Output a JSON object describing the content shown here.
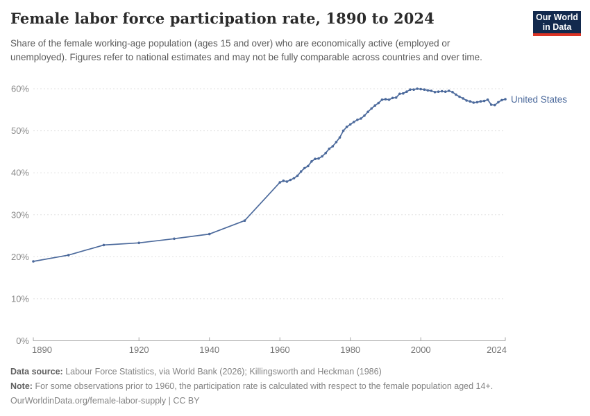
{
  "header": {
    "title": "Female labor force participation rate, 1890 to 2024",
    "subtitle": "Share of the female working-age population (ages 15 and over) who are economically active (employed or unemployed). Figures refer to national estimates and may not be fully comparable across countries and over time.",
    "logo": {
      "line1": "Our World",
      "line2": "in Data"
    }
  },
  "colors": {
    "series_line": "#4c6a9c",
    "logo_navy": "#12294d",
    "logo_red": "#dc3425",
    "gridline": "#e0e0e0",
    "axis": "#a6a6a6"
  },
  "chart_data": {
    "type": "line",
    "title": "Female labor force participation rate, 1890 to 2024",
    "xlabel": "",
    "ylabel": "",
    "xlim": [
      1890,
      2024
    ],
    "ylim": [
      0,
      60
    ],
    "x_ticks": [
      1890,
      1920,
      1940,
      1960,
      1980,
      2000,
      2024
    ],
    "y_ticks": [
      0,
      10,
      20,
      30,
      40,
      50,
      60
    ],
    "y_unit": "%",
    "grid": "horizontal-dashed",
    "legend_position": "end-of-line",
    "series": [
      {
        "name": "United States",
        "color": "#4c6a9c",
        "points": [
          [
            1890,
            18.9
          ],
          [
            1900,
            20.4
          ],
          [
            1910,
            22.8
          ],
          [
            1920,
            23.3
          ],
          [
            1930,
            24.3
          ],
          [
            1940,
            25.4
          ],
          [
            1950,
            28.6
          ],
          [
            1960,
            37.7
          ],
          [
            1961,
            38.1
          ],
          [
            1962,
            37.9
          ],
          [
            1963,
            38.3
          ],
          [
            1964,
            38.7
          ],
          [
            1965,
            39.3
          ],
          [
            1966,
            40.3
          ],
          [
            1967,
            41.1
          ],
          [
            1968,
            41.6
          ],
          [
            1969,
            42.7
          ],
          [
            1970,
            43.3
          ],
          [
            1971,
            43.4
          ],
          [
            1972,
            43.9
          ],
          [
            1973,
            44.7
          ],
          [
            1974,
            45.7
          ],
          [
            1975,
            46.3
          ],
          [
            1976,
            47.3
          ],
          [
            1977,
            48.4
          ],
          [
            1978,
            50.0
          ],
          [
            1979,
            50.9
          ],
          [
            1980,
            51.5
          ],
          [
            1981,
            52.1
          ],
          [
            1982,
            52.6
          ],
          [
            1983,
            52.9
          ],
          [
            1984,
            53.6
          ],
          [
            1985,
            54.5
          ],
          [
            1986,
            55.3
          ],
          [
            1987,
            56.0
          ],
          [
            1988,
            56.6
          ],
          [
            1989,
            57.4
          ],
          [
            1990,
            57.5
          ],
          [
            1991,
            57.4
          ],
          [
            1992,
            57.8
          ],
          [
            1993,
            57.9
          ],
          [
            1994,
            58.8
          ],
          [
            1995,
            58.9
          ],
          [
            1996,
            59.3
          ],
          [
            1997,
            59.8
          ],
          [
            1998,
            59.8
          ],
          [
            1999,
            60.0
          ],
          [
            2000,
            59.9
          ],
          [
            2001,
            59.8
          ],
          [
            2002,
            59.6
          ],
          [
            2003,
            59.5
          ],
          [
            2004,
            59.2
          ],
          [
            2005,
            59.3
          ],
          [
            2006,
            59.4
          ],
          [
            2007,
            59.3
          ],
          [
            2008,
            59.5
          ],
          [
            2009,
            59.2
          ],
          [
            2010,
            58.6
          ],
          [
            2011,
            58.1
          ],
          [
            2012,
            57.7
          ],
          [
            2013,
            57.2
          ],
          [
            2014,
            57.0
          ],
          [
            2015,
            56.7
          ],
          [
            2016,
            56.8
          ],
          [
            2017,
            57.0
          ],
          [
            2018,
            57.1
          ],
          [
            2019,
            57.4
          ],
          [
            2020,
            56.2
          ],
          [
            2021,
            56.1
          ],
          [
            2022,
            56.8
          ],
          [
            2023,
            57.3
          ],
          [
            2024,
            57.5
          ]
        ]
      }
    ]
  },
  "footer": {
    "datasource_label": "Data source:",
    "datasource_text": "Labour Force Statistics, via World Bank (2026); Killingsworth and Heckman (1986)",
    "note_label": "Note:",
    "note_text": "For some observations prior to 1960, the participation rate is calculated with respect to the female population aged 14+.",
    "license": "OurWorldinData.org/female-labor-supply | CC BY"
  }
}
